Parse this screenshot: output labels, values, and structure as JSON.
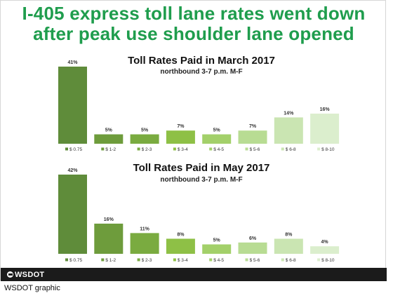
{
  "headline": {
    "line1": "I-405 express toll lane rates went down",
    "line2": "after peak use shoulder lane opened"
  },
  "footer": {
    "logo_text": "WSDOT"
  },
  "caption": "WSDOT graphic",
  "colors": {
    "headline": "#1f9d4d",
    "bars": [
      "#5f8c3a",
      "#6e9c3c",
      "#7aab40",
      "#8ec046",
      "#a3d06a",
      "#b8dc93",
      "#cae5b2",
      "#dbeecd"
    ]
  },
  "chart_data": [
    {
      "type": "bar",
      "title": "Toll Rates Paid in March 2017",
      "subtitle": "northbound 3-7 p.m. M-F",
      "categories": [
        "$ 0.75",
        "$ 1-2",
        "$ 2-3",
        "$ 3-4",
        "$ 4-5",
        "$ 5-6",
        "$ 6-8",
        "$ 8-10"
      ],
      "values": [
        41,
        5,
        5,
        7,
        5,
        7,
        14,
        16
      ],
      "value_labels": [
        "41%",
        "5%",
        "5%",
        "7%",
        "5%",
        "7%",
        "14%",
        "16%"
      ],
      "unit": "%",
      "ylim": [
        0,
        41
      ],
      "grid": false,
      "legend": "bottom"
    },
    {
      "type": "bar",
      "title": "Toll Rates Paid in May 2017",
      "subtitle": "northbound 3-7 p.m. M-F",
      "categories": [
        "$ 0.75",
        "$ 1-2",
        "$ 2-3",
        "$ 3-4",
        "$ 4-5",
        "$ 5-6",
        "$ 6-8",
        "$ 8-10"
      ],
      "values": [
        42,
        16,
        11,
        8,
        5,
        6,
        8,
        4
      ],
      "value_labels": [
        "42%",
        "16%",
        "11%",
        "8%",
        "5%",
        "6%",
        "8%",
        "4%"
      ],
      "unit": "%",
      "ylim": [
        0,
        42
      ],
      "grid": false,
      "legend": "bottom"
    }
  ]
}
